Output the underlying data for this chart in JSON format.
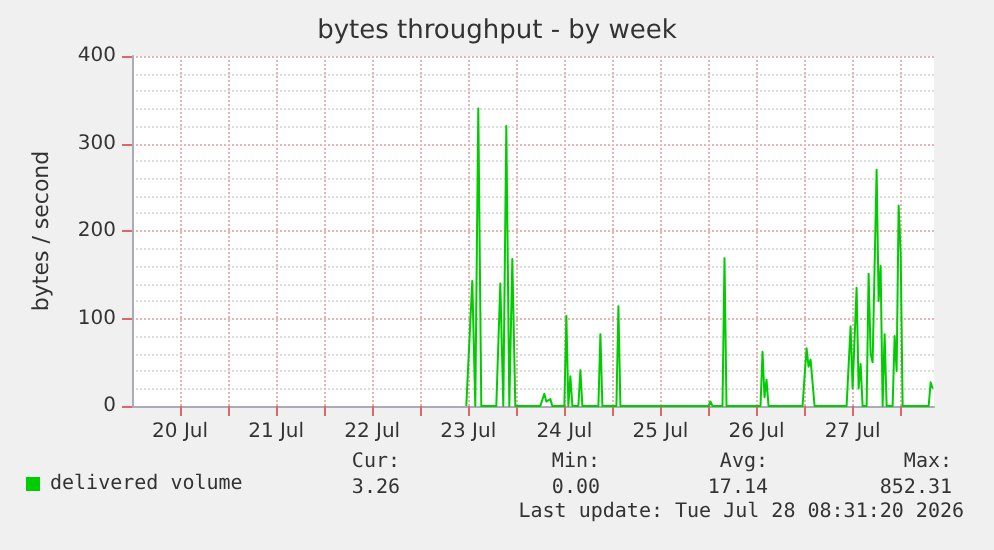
{
  "chart_data": {
    "type": "line",
    "title": "bytes throughput - by week",
    "ylabel": "bytes / second",
    "x": [
      "2026-07-23T11:30",
      "2026-07-23T13:00",
      "2026-07-23T13:45",
      "2026-07-23T14:30",
      "2026-07-23T15:15",
      "2026-07-23T19:00",
      "2026-07-23T20:00",
      "2026-07-23T20:45",
      "2026-07-23T21:30",
      "2026-07-23T22:15",
      "2026-07-23T23:00",
      "2026-07-23T23:45",
      "2026-07-24T06:00",
      "2026-07-24T07:00",
      "2026-07-24T07:30",
      "2026-07-24T08:30",
      "2026-07-24T09:00",
      "2026-07-24T12:00",
      "2026-07-24T12:30",
      "2026-07-24T13:00",
      "2026-07-24T13:30",
      "2026-07-24T14:00",
      "2026-07-24T15:30",
      "2026-07-24T16:00",
      "2026-07-24T16:30",
      "2026-07-24T20:30",
      "2026-07-24T21:00",
      "2026-07-24T21:30",
      "2026-07-25T01:00",
      "2026-07-25T01:30",
      "2026-07-25T02:00",
      "2026-07-26T00:00",
      "2026-07-26T00:30",
      "2026-07-26T01:00",
      "2026-07-26T03:30",
      "2026-07-26T04:00",
      "2026-07-26T04:30",
      "2026-07-26T13:00",
      "2026-07-26T13:30",
      "2026-07-26T14:00",
      "2026-07-26T14:30",
      "2026-07-26T15:00",
      "2026-07-26T23:30",
      "2026-07-27T00:30",
      "2026-07-27T01:00",
      "2026-07-27T01:30",
      "2026-07-27T02:30",
      "2026-07-27T10:30",
      "2026-07-27T11:30",
      "2026-07-27T12:00",
      "2026-07-27T13:00",
      "2026-07-27T13:30",
      "2026-07-27T14:00",
      "2026-07-27T14:30",
      "2026-07-27T15:30",
      "2026-07-27T16:00",
      "2026-07-27T16:30",
      "2026-07-27T17:00",
      "2026-07-27T18:00",
      "2026-07-27T18:30",
      "2026-07-27T19:00",
      "2026-07-27T19:30",
      "2026-07-27T20:00",
      "2026-07-27T20:30",
      "2026-07-27T22:00",
      "2026-07-27T22:30",
      "2026-07-27T23:00",
      "2026-07-27T23:30",
      "2026-07-28T00:00",
      "2026-07-28T00:30",
      "2026-07-28T07:00",
      "2026-07-28T07:30",
      "2026-07-28T08:00"
    ],
    "series": [
      {
        "name": "delivered volume",
        "color": "#00cc00",
        "values": [
          0,
          143,
          0,
          340,
          0,
          0,
          140,
          0,
          320,
          0,
          168,
          0,
          0,
          14,
          5,
          8,
          0,
          0,
          103,
          0,
          34,
          0,
          0,
          41,
          0,
          0,
          82,
          0,
          0,
          114,
          0,
          0,
          5,
          0,
          0,
          169,
          0,
          0,
          62,
          10,
          30,
          0,
          0,
          66,
          45,
          53,
          0,
          0,
          91,
          20,
          135,
          20,
          48,
          0,
          0,
          151,
          60,
          50,
          270,
          120,
          160,
          0,
          82,
          0,
          0,
          80,
          40,
          229,
          176,
          0,
          0,
          27,
          20
        ]
      }
    ],
    "xlim": [
      "2026-07-20T00:00",
      "2026-07-28T08:20"
    ],
    "xticks": [
      {
        "value": "2026-07-20T12:00",
        "label": "20 Jul"
      },
      {
        "value": "2026-07-21T00:00",
        "label": null
      },
      {
        "value": "2026-07-21T12:00",
        "label": "21 Jul"
      },
      {
        "value": "2026-07-22T00:00",
        "label": null
      },
      {
        "value": "2026-07-22T12:00",
        "label": "22 Jul"
      },
      {
        "value": "2026-07-23T00:00",
        "label": null
      },
      {
        "value": "2026-07-23T12:00",
        "label": "23 Jul"
      },
      {
        "value": "2026-07-24T00:00",
        "label": null
      },
      {
        "value": "2026-07-24T12:00",
        "label": "24 Jul"
      },
      {
        "value": "2026-07-25T00:00",
        "label": null
      },
      {
        "value": "2026-07-25T12:00",
        "label": "25 Jul"
      },
      {
        "value": "2026-07-26T00:00",
        "label": null
      },
      {
        "value": "2026-07-26T12:00",
        "label": "26 Jul"
      },
      {
        "value": "2026-07-27T00:00",
        "label": null
      },
      {
        "value": "2026-07-27T12:00",
        "label": "27 Jul"
      },
      {
        "value": "2026-07-28T00:00",
        "label": null
      }
    ],
    "ylim": [
      0,
      400
    ],
    "yticks": [
      0,
      100,
      200,
      300,
      400
    ],
    "grid": true,
    "legend": "bottom left",
    "marker": "none",
    "line_style": "solid",
    "annotations": [
      "Cur:",
      "3.26",
      "Min:",
      "0.00",
      "Avg:",
      "17.14",
      "Max:",
      "852.31",
      "Last update: Tue Jul 28 08:31:20 2026"
    ]
  }
}
